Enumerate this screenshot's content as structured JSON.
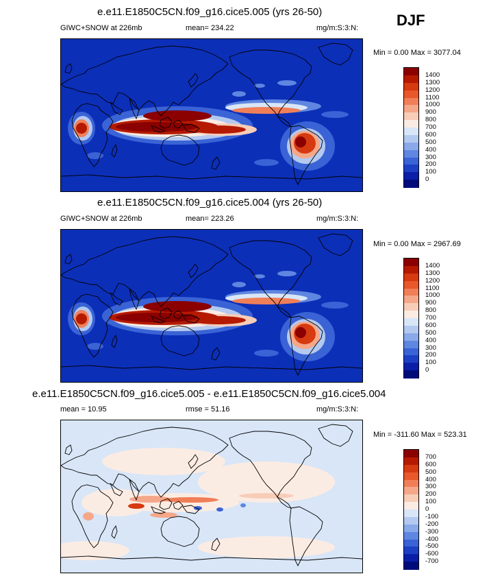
{
  "season": "DJF",
  "chart_data": [
    {
      "type": "heatmap",
      "title": "e.e11.E1850C5CN.f09_g16.cice5.005 (yrs 26-50)",
      "left_label": "GIWC+SNOW at 226mb",
      "center_label": "mean= 234.22",
      "units": "mg/m:S:3:N:",
      "minmax": "Min =    0.00 Max = 3077.04",
      "min": 0.0,
      "max": 3077.04,
      "mean": 234.22,
      "colorbar_levels": [
        "1400",
        "1300",
        "1200",
        "1100",
        "1000",
        "900",
        "800",
        "700",
        "600",
        "500",
        "400",
        "300",
        "200",
        "100",
        "0"
      ],
      "colorbar_colors": [
        "#8b0000",
        "#b51a00",
        "#d63a10",
        "#e8582a",
        "#f07f58",
        "#f5a789",
        "#f8cdb8",
        "#fbece3",
        "#d8e6f7",
        "#b3c9f0",
        "#8aa9e8",
        "#5f86e0",
        "#3a63d6",
        "#1c3fc4",
        "#0a1ea8",
        "#000c7a"
      ],
      "background_color": "#0c2fb8",
      "field": "model 005"
    },
    {
      "type": "heatmap",
      "title": "e.e11.E1850C5CN.f09_g16.cice5.004 (yrs 26-50)",
      "left_label": "GIWC+SNOW at 226mb",
      "center_label": "mean= 223.26",
      "units": "mg/m:S:3:N:",
      "minmax": "Min =    0.00 Max = 2967.69",
      "min": 0.0,
      "max": 2967.69,
      "mean": 223.26,
      "colorbar_levels": [
        "1400",
        "1300",
        "1200",
        "1100",
        "1000",
        "900",
        "800",
        "700",
        "600",
        "500",
        "400",
        "300",
        "200",
        "100",
        "0"
      ],
      "colorbar_colors": [
        "#8b0000",
        "#b51a00",
        "#d63a10",
        "#e8582a",
        "#f07f58",
        "#f5a789",
        "#f8cdb8",
        "#fbece3",
        "#d8e6f7",
        "#b3c9f0",
        "#8aa9e8",
        "#5f86e0",
        "#3a63d6",
        "#1c3fc4",
        "#0a1ea8",
        "#000c7a"
      ],
      "background_color": "#0c2fb8",
      "field": "model 004"
    },
    {
      "type": "heatmap",
      "title": "e.e11.E1850C5CN.f09_g16.cice5.005 - e.e11.E1850C5CN.f09_g16.cice5.004",
      "left_label": "mean =  10.95",
      "center_label": "rmse =  51.16",
      "units": "mg/m:S:3:N:",
      "minmax": "Min = -311.60 Max = 523.31",
      "min": -311.6,
      "max": 523.31,
      "mean": 10.95,
      "rmse": 51.16,
      "colorbar_levels": [
        "700",
        "600",
        "500",
        "400",
        "300",
        "200",
        "100",
        "0",
        "-100",
        "-200",
        "-300",
        "-400",
        "-500",
        "-600",
        "-700"
      ],
      "colorbar_colors": [
        "#8b0000",
        "#b51a00",
        "#d63a10",
        "#e8582a",
        "#f07f58",
        "#f5a789",
        "#f8cdb8",
        "#fbece3",
        "#d8e6f7",
        "#b3c9f0",
        "#8aa9e8",
        "#5f86e0",
        "#3a63d6",
        "#1c3fc4",
        "#0a1ea8",
        "#000c7a"
      ],
      "background_color": "#d8e6f7",
      "field": "difference"
    }
  ]
}
